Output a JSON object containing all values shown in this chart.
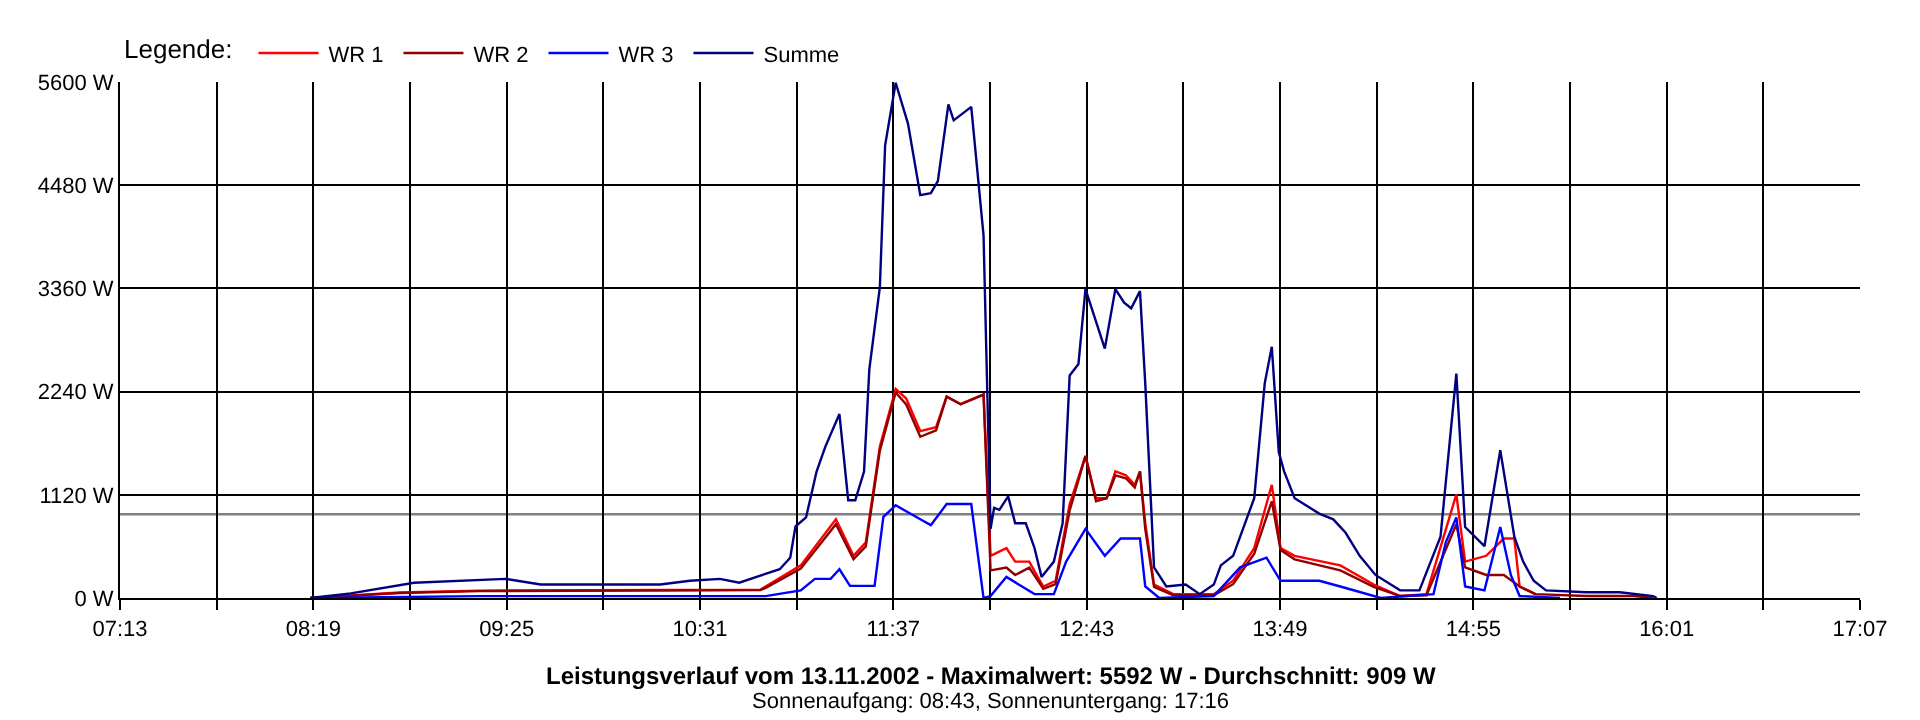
{
  "chart_data": {
    "type": "line",
    "title": "Leistungsverlauf vom 13.11.2002 - Maximalwert: 5592 W - Durchschnitt: 909 W",
    "subtitle": "Sonnenaufgang: 08:43, Sonnenuntergang: 17:16",
    "legend_title": "Legende:",
    "legend": "top left",
    "grid": true,
    "xlim": [
      7.2167,
      17.1167
    ],
    "xticks": [
      {
        "value": 7.2167,
        "label": "07:13"
      },
      {
        "value": 7.7667,
        "label": null
      },
      {
        "value": 8.3167,
        "label": "08:19"
      },
      {
        "value": 8.8667,
        "label": null
      },
      {
        "value": 9.4167,
        "label": "09:25"
      },
      {
        "value": 9.9667,
        "label": null
      },
      {
        "value": 10.5167,
        "label": "10:31"
      },
      {
        "value": 11.0667,
        "label": null
      },
      {
        "value": 11.6167,
        "label": "11:37"
      },
      {
        "value": 12.1667,
        "label": null
      },
      {
        "value": 12.7167,
        "label": "12:43"
      },
      {
        "value": 13.2667,
        "label": null
      },
      {
        "value": 13.8167,
        "label": "13:49"
      },
      {
        "value": 14.3667,
        "label": null
      },
      {
        "value": 14.9167,
        "label": "14:55"
      },
      {
        "value": 15.4667,
        "label": null
      },
      {
        "value": 16.0167,
        "label": "16:01"
      },
      {
        "value": 16.5667,
        "label": null
      },
      {
        "value": 17.1167,
        "label": "17:07"
      }
    ],
    "ylim": [
      0,
      5600
    ],
    "yticks": [
      {
        "value": 0,
        "label": "0 W"
      },
      {
        "value": 1120,
        "label": "1120 W"
      },
      {
        "value": 2240,
        "label": "2240 W"
      },
      {
        "value": 3360,
        "label": "3360 W"
      },
      {
        "value": 4480,
        "label": "4480 W"
      },
      {
        "value": 5600,
        "label": "5600 W"
      }
    ],
    "ref_lines": [
      {
        "axis": "y",
        "value": 909,
        "color": "#808080"
      }
    ],
    "series": [
      {
        "name": "WR 1",
        "color": "#ff0000",
        "x": [
          8.3,
          8.81,
          9.26,
          10.86,
          10.89,
          11.09,
          11.29,
          11.39,
          11.46,
          11.54,
          11.63,
          11.69,
          11.77,
          11.86,
          11.92,
          12.0,
          12.13,
          12.17,
          12.26,
          12.31,
          12.39,
          12.47,
          12.54,
          12.62,
          12.71,
          12.77,
          12.83,
          12.88,
          12.94,
          12.99,
          13.02,
          13.05,
          13.1,
          13.21,
          13.44,
          13.55,
          13.67,
          13.77,
          13.82,
          13.9,
          14.16,
          14.35,
          14.5,
          14.65,
          14.82,
          14.87,
          14.99,
          15.09,
          15.15,
          15.18,
          15.27
        ],
        "values": [
          0,
          60,
          80,
          90,
          125,
          354,
          854,
          458,
          604,
          1645,
          2270,
          2165,
          1811,
          1853,
          2186,
          2103,
          2207,
          458,
          541,
          395,
          395,
          125,
          187,
          1020,
          1541,
          1083,
          1083,
          1374,
          1332,
          1228,
          1374,
          812,
          146,
          42,
          42,
          187,
          541,
          1228,
          541,
          458,
          354,
          146,
          21,
          42,
          1124,
          395,
          458,
          645,
          645,
          125,
          42
        ]
      },
      {
        "name": "WR 2",
        "color": "#900000",
        "x": [
          8.3,
          8.81,
          9.26,
          10.86,
          10.89,
          11.09,
          11.29,
          11.39,
          11.46,
          11.54,
          11.63,
          11.69,
          11.77,
          11.86,
          11.92,
          12.0,
          12.13,
          12.17,
          12.26,
          12.31,
          12.39,
          12.47,
          12.54,
          12.62,
          12.71,
          12.77,
          12.83,
          12.88,
          12.94,
          12.99,
          13.02,
          13.05,
          13.1,
          13.21,
          13.44,
          13.55,
          13.67,
          13.77,
          13.82,
          13.9,
          14.16,
          14.35,
          14.5,
          14.65,
          14.82,
          14.87,
          14.99,
          15.09,
          15.18,
          15.27,
          15.56,
          15.83,
          15.94
        ],
        "values": [
          0,
          55,
          75,
          85,
          110,
          320,
          800,
          420,
          560,
          1600,
          2230,
          2100,
          1750,
          1820,
          2186,
          2103,
          2207,
          300,
          330,
          250,
          330,
          100,
          150,
          950,
          1541,
          1050,
          1083,
          1330,
          1300,
          1200,
          1374,
          750,
          120,
          30,
          30,
          150,
          480,
          1050,
          520,
          420,
          300,
          120,
          21,
          30,
          800,
          333,
          250,
          250,
          125,
          42,
          21,
          21,
          0
        ]
      },
      {
        "name": "WR 3",
        "color": "#0000ff",
        "x": [
          8.3,
          9.26,
          10.46,
          10.89,
          11.09,
          11.17,
          11.26,
          11.31,
          11.37,
          11.51,
          11.56,
          11.63,
          11.77,
          11.83,
          11.92,
          12.06,
          12.13,
          12.17,
          12.26,
          12.42,
          12.53,
          12.6,
          12.71,
          12.82,
          12.91,
          13.02,
          13.05,
          13.13,
          13.44,
          13.59,
          13.74,
          13.82,
          14.04,
          14.16,
          14.39,
          14.69,
          14.76,
          14.82,
          14.87,
          14.98,
          15.07,
          15.13,
          15.18,
          15.41
        ],
        "values": [
          0,
          20,
          20,
          20,
          83,
          208,
          208,
          312,
          131,
          131,
          880,
          1006,
          854,
          791,
          1020,
          1020,
          0,
          21,
          229,
          42,
          42,
          395,
          750,
          458,
          645,
          645,
          125,
          0,
          21,
          333,
          437,
          187,
          187,
          125,
          0,
          42,
          604,
          874,
          125,
          83,
          770,
          250,
          21,
          0
        ]
      },
      {
        "name": "Summe",
        "color": "#000080",
        "x": [
          8.3,
          8.53,
          8.89,
          9.41,
          9.61,
          10.29,
          10.46,
          10.63,
          10.74,
          10.86,
          10.97,
          11.03,
          11.06,
          11.12,
          11.18,
          11.23,
          11.31,
          11.36,
          11.4,
          11.45,
          11.48,
          11.54,
          11.57,
          11.63,
          11.7,
          11.77,
          11.83,
          11.87,
          11.93,
          11.96,
          12.06,
          12.13,
          12.17,
          12.19,
          12.22,
          12.27,
          12.31,
          12.37,
          12.42,
          12.46,
          12.53,
          12.58,
          12.62,
          12.67,
          12.71,
          12.82,
          12.88,
          12.93,
          12.97,
          13.02,
          13.05,
          13.1,
          13.17,
          13.28,
          13.36,
          13.44,
          13.48,
          13.55,
          13.67,
          13.73,
          13.77,
          13.81,
          13.84,
          13.9,
          14.04,
          14.12,
          14.19,
          14.27,
          14.36,
          14.5,
          14.61,
          14.73,
          14.82,
          14.87,
          14.98,
          15.07,
          15.15,
          15.2,
          15.26,
          15.33,
          15.56,
          15.75,
          15.94,
          15.96
        ],
        "values": [
          0,
          50,
          166,
          208,
          146,
          146,
          187,
          208,
          166,
          243,
          312,
          437,
          776,
          874,
          1373,
          1643,
          1997,
          1061,
          1061,
          1373,
          2478,
          3373,
          4913,
          5592,
          5149,
          4372,
          4393,
          4524,
          5357,
          5184,
          5330,
          3935,
          750,
          978,
          957,
          1103,
          812,
          812,
          541,
          229,
          395,
          812,
          2415,
          2540,
          3352,
          2706,
          3352,
          3206,
          3144,
          3331,
          2332,
          333,
          125,
          146,
          42,
          146,
          354,
          458,
          1083,
          2332,
          2727,
          1582,
          1374,
          1083,
          916,
          854,
          708,
          458,
          250,
          83,
          83,
          666,
          2436,
          770,
          562,
          1603,
          666,
          395,
          187,
          83,
          62,
          62,
          21,
          0
        ]
      }
    ]
  }
}
